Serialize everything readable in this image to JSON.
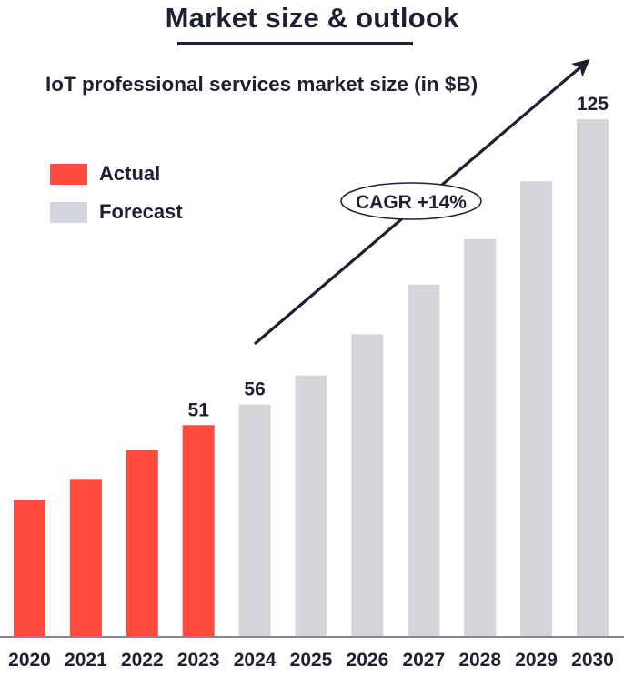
{
  "title": "Market size & outlook",
  "colors": {
    "actual": "#ff4a3d",
    "forecast_bar": "#d4d5d8",
    "forecast_legend": "#d3d6df",
    "text": "#1d2033",
    "axis": "#5b5f6b"
  },
  "legend": {
    "items": [
      {
        "label": "Actual",
        "color_key": "actual"
      },
      {
        "label": "Forecast",
        "color_key": "forecast_legend"
      }
    ]
  },
  "annotation": {
    "cagr_label": "CAGR +14%"
  },
  "chart_data": {
    "type": "bar",
    "title": "IoT professional services market size (in $B)",
    "xlabel": "",
    "ylabel": "",
    "ylim": [
      0,
      125
    ],
    "grid": false,
    "legend_position": "top-left",
    "categories": [
      "2020",
      "2021",
      "2022",
      "2023",
      "2024",
      "2025",
      "2026",
      "2027",
      "2028",
      "2029",
      "2030"
    ],
    "series": [
      {
        "name": "Actual",
        "values": [
          33,
          38,
          45,
          51,
          null,
          null,
          null,
          null,
          null,
          null,
          null
        ]
      },
      {
        "name": "Forecast",
        "values": [
          null,
          null,
          null,
          null,
          56,
          63,
          73,
          85,
          96,
          110,
          125
        ]
      }
    ],
    "data_labels": [
      {
        "category": "2023",
        "text": "51"
      },
      {
        "category": "2024",
        "text": "56"
      },
      {
        "category": "2030",
        "text": "125"
      }
    ],
    "annotations": [
      "CAGR +14%"
    ]
  }
}
